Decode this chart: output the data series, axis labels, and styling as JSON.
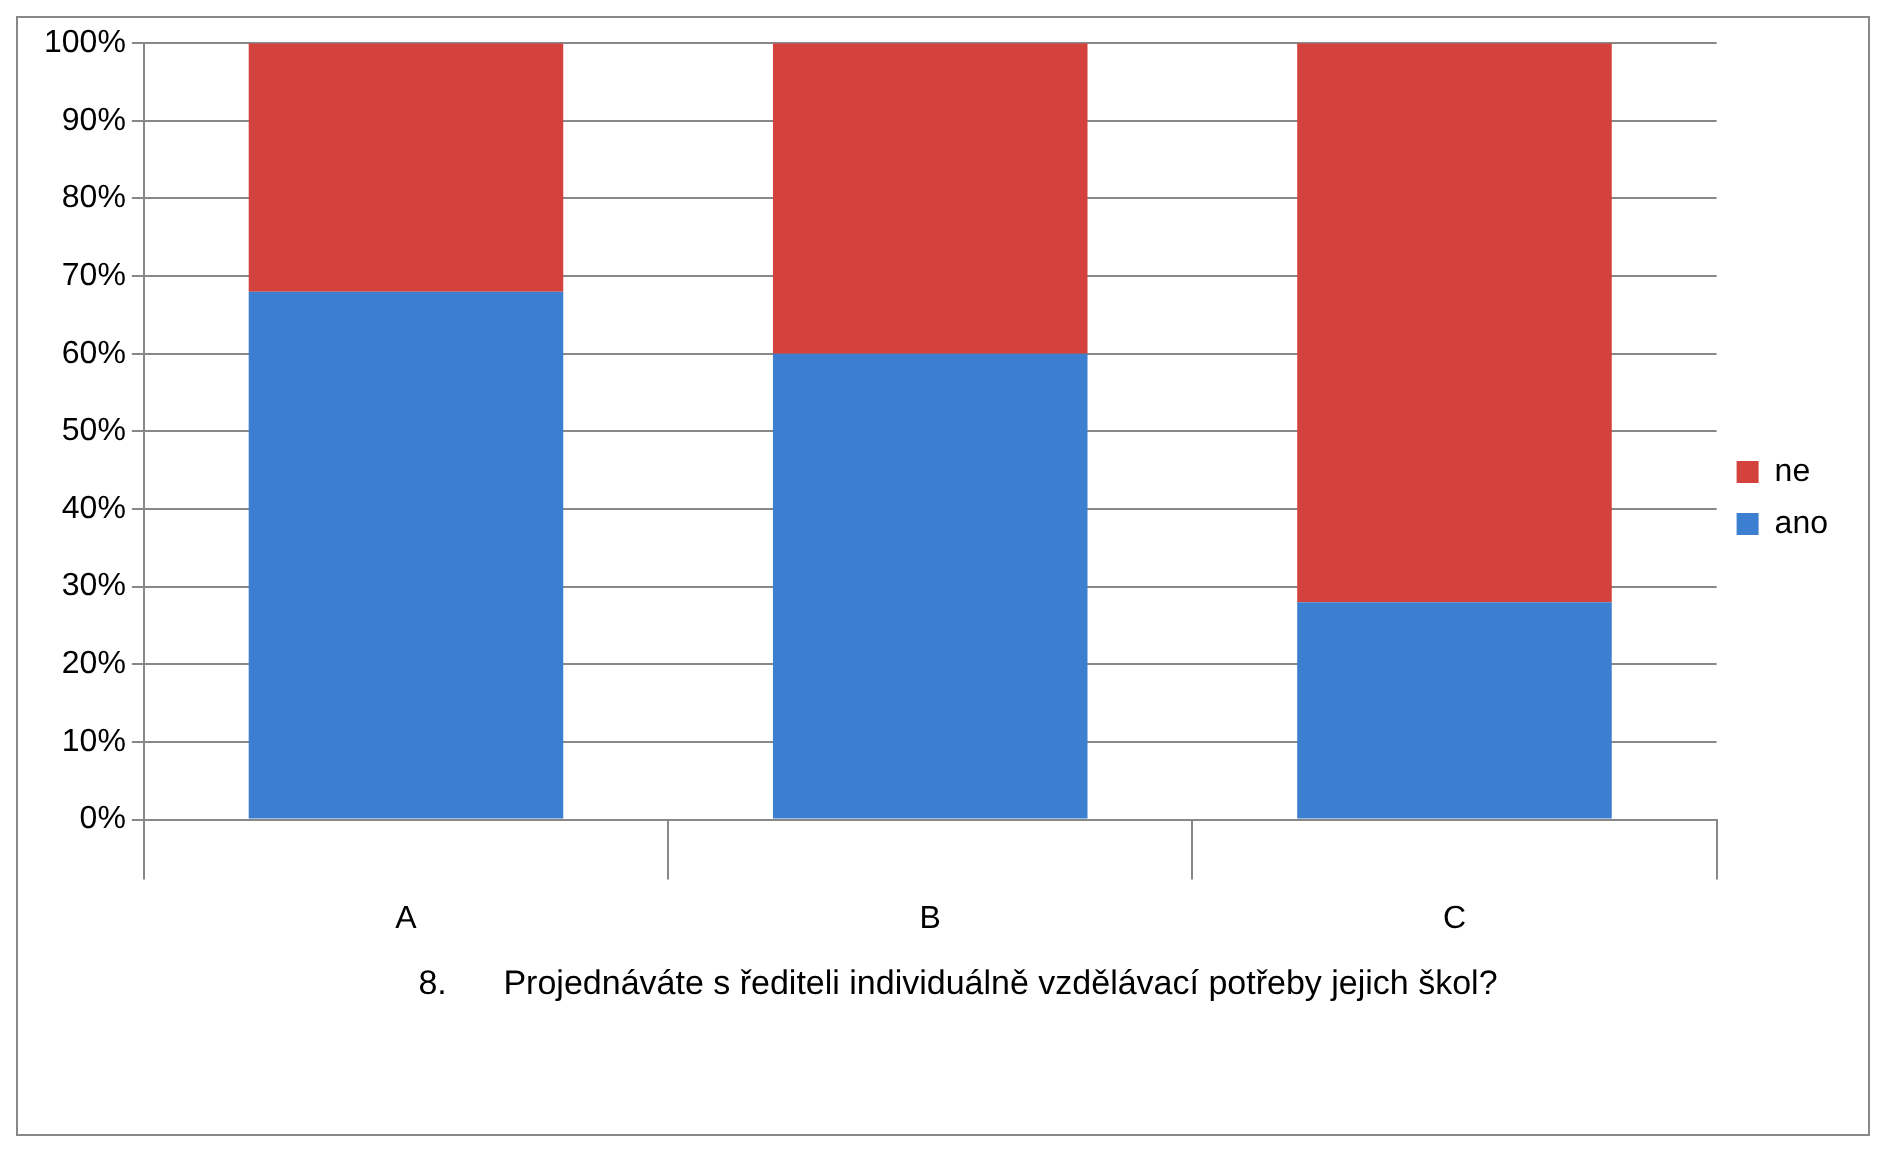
{
  "chart_data": {
    "type": "bar",
    "stacked": true,
    "categories": [
      "A",
      "B",
      "C"
    ],
    "series": [
      {
        "name": "ano",
        "color": "#3c7fd0",
        "values": [
          68,
          60,
          28
        ]
      },
      {
        "name": "ne",
        "color": "#d4423d",
        "values": [
          32,
          40,
          72
        ]
      }
    ],
    "ylim": [
      0,
      100
    ],
    "yticks": [
      {
        "value": 0,
        "label": "0%"
      },
      {
        "value": 10,
        "label": "10%"
      },
      {
        "value": 20,
        "label": "20%"
      },
      {
        "value": 30,
        "label": "30%"
      },
      {
        "value": 40,
        "label": "40%"
      },
      {
        "value": 50,
        "label": "50%"
      },
      {
        "value": 60,
        "label": "60%"
      },
      {
        "value": 70,
        "label": "70%"
      },
      {
        "value": 80,
        "label": "80%"
      },
      {
        "value": 90,
        "label": "90%"
      },
      {
        "value": 100,
        "label": "100%"
      }
    ],
    "xlabel": "8.      Projednáváte s řediteli individuálně vzdělávací potřeby jejich škol?",
    "grid": "y",
    "legend": "right"
  }
}
